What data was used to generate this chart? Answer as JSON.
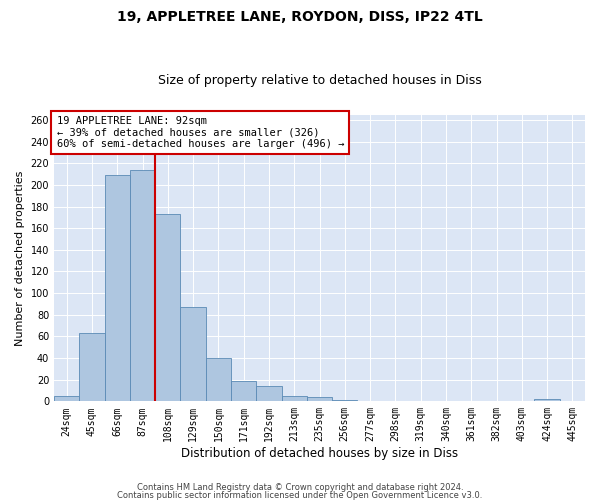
{
  "title1": "19, APPLETREE LANE, ROYDON, DISS, IP22 4TL",
  "title2": "Size of property relative to detached houses in Diss",
  "xlabel": "Distribution of detached houses by size in Diss",
  "ylabel": "Number of detached properties",
  "categories": [
    "24sqm",
    "45sqm",
    "66sqm",
    "87sqm",
    "108sqm",
    "129sqm",
    "150sqm",
    "171sqm",
    "192sqm",
    "213sqm",
    "235sqm",
    "256sqm",
    "277sqm",
    "298sqm",
    "319sqm",
    "340sqm",
    "361sqm",
    "382sqm",
    "403sqm",
    "424sqm",
    "445sqm"
  ],
  "bar_heights": [
    5,
    63,
    209,
    214,
    173,
    87,
    40,
    19,
    14,
    5,
    4,
    1,
    0,
    0,
    0,
    0,
    0,
    0,
    0,
    2,
    0
  ],
  "bar_color": "#aec6e0",
  "bar_edge_color": "#5a8ab5",
  "vline_x_idx": 3.5,
  "vline_color": "#cc0000",
  "annotation_box_text": "19 APPLETREE LANE: 92sqm\n← 39% of detached houses are smaller (326)\n60% of semi-detached houses are larger (496) →",
  "annotation_box_color": "#cc0000",
  "ylim": [
    0,
    265
  ],
  "yticks": [
    0,
    20,
    40,
    60,
    80,
    100,
    120,
    140,
    160,
    180,
    200,
    220,
    240,
    260
  ],
  "footer1": "Contains HM Land Registry data © Crown copyright and database right 2024.",
  "footer2": "Contains public sector information licensed under the Open Government Licence v3.0.",
  "plot_bg_color": "#dce6f5",
  "title_fontsize": 10,
  "subtitle_fontsize": 9,
  "tick_fontsize": 7,
  "ylabel_fontsize": 8,
  "xlabel_fontsize": 8.5,
  "footer_fontsize": 6,
  "annot_fontsize": 7.5
}
